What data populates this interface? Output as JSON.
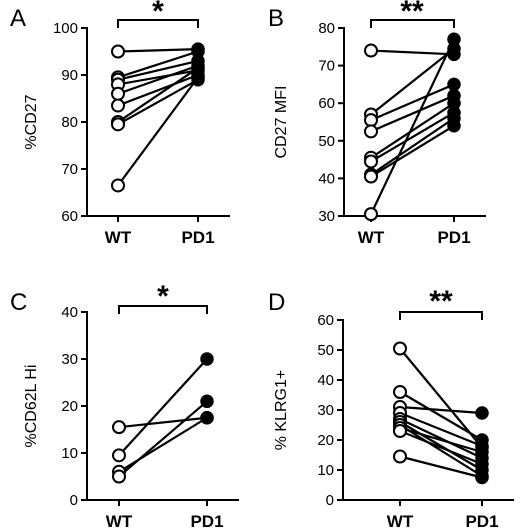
{
  "chart_data": [
    {
      "type": "scatter",
      "panel": "A",
      "ylabel": "%CD27",
      "categories": [
        "WT",
        "PD1"
      ],
      "ylim": [
        60,
        100
      ],
      "yticks": [
        60,
        70,
        80,
        90,
        100
      ],
      "significance": "*",
      "pairs": [
        [
          95,
          95.5
        ],
        [
          89.5,
          95
        ],
        [
          89,
          93
        ],
        [
          88,
          91
        ],
        [
          86,
          92
        ],
        [
          83.5,
          90
        ],
        [
          80,
          91.5
        ],
        [
          79.5,
          89
        ],
        [
          66.5,
          89.5
        ]
      ]
    },
    {
      "type": "scatter",
      "panel": "B",
      "ylabel": "CD27 MFI",
      "categories": [
        "WT",
        "PD1"
      ],
      "ylim": [
        30,
        80
      ],
      "yticks": [
        30,
        40,
        50,
        60,
        70,
        80
      ],
      "significance": "**",
      "pairs": [
        [
          74,
          73
        ],
        [
          57,
          74.5
        ],
        [
          55.5,
          65
        ],
        [
          52.5,
          62
        ],
        [
          45.5,
          60
        ],
        [
          44.5,
          57.5
        ],
        [
          41,
          56
        ],
        [
          40.5,
          54
        ],
        [
          30.5,
          77
        ]
      ]
    },
    {
      "type": "scatter",
      "panel": "C",
      "ylabel": "%CD62L Hi",
      "categories": [
        "WT",
        "PD1"
      ],
      "ylim": [
        0,
        40
      ],
      "yticks": [
        0,
        10,
        20,
        30,
        40
      ],
      "significance": "*",
      "pairs": [
        [
          15.5,
          17.5
        ],
        [
          9.5,
          30
        ],
        [
          6,
          17.5
        ],
        [
          5,
          21
        ]
      ]
    },
    {
      "type": "scatter",
      "panel": "D",
      "ylabel": "% KLRG1+",
      "categories": [
        "WT",
        "PD1"
      ],
      "ylim": [
        0,
        60
      ],
      "yticks": [
        0,
        10,
        20,
        30,
        40,
        50,
        60
      ],
      "significance": "**",
      "pairs": [
        [
          50.5,
          17.5
        ],
        [
          36,
          20
        ],
        [
          31,
          29
        ],
        [
          29,
          18
        ],
        [
          27,
          14
        ],
        [
          26,
          10
        ],
        [
          25,
          8
        ],
        [
          24,
          16
        ],
        [
          23,
          12
        ],
        [
          14.5,
          7.5
        ]
      ]
    }
  ]
}
